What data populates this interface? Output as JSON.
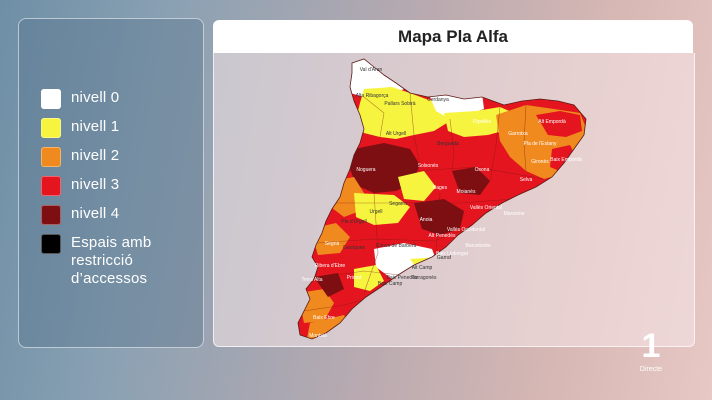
{
  "title": "Mapa Pla Alfa",
  "legend": [
    {
      "label": "nivell 0",
      "color": "#ffffff"
    },
    {
      "label": "nivell 1",
      "color": "#f7f440"
    },
    {
      "label": "nivell 2",
      "color": "#f08a1e"
    },
    {
      "label": "nivell 3",
      "color": "#e4151f"
    },
    {
      "label": "nivell 4",
      "color": "#7d0e12"
    },
    {
      "label": "Espais amb\nrestricció\nd’accessos",
      "color": "#000000"
    }
  ],
  "map_labels": [
    "Val d'Aran",
    "Alta Ribagorça",
    "Pallars Sobirà",
    "Cerdanya",
    "Alt Urgell",
    "Berguedà",
    "Ripollès",
    "Garrotxa",
    "Alt Empordà",
    "Pla de l'Estany",
    "Gironès",
    "Baix Empordà",
    "Selva",
    "Osona",
    "Noguera",
    "Solsonès",
    "Bages",
    "Moianès",
    "Vallès Oriental",
    "Maresme",
    "Segarra",
    "Urgell",
    "Pla d'Urgell",
    "Segrià",
    "Anoia",
    "Vallès Occidental",
    "Barcelonès",
    "Baix Llobregat",
    "Garrigues",
    "Conca de Barberà",
    "Alt Camp",
    "Alt Penedès",
    "Garraf",
    "Baix Penedès",
    "Tarragonès",
    "Baix Camp",
    "Priorat",
    "Ribera d'Ebre",
    "Terra Alta",
    "Baix Ebre",
    "Montsià"
  ],
  "channel_logo": {
    "digit": "1",
    "text": "Directe"
  }
}
